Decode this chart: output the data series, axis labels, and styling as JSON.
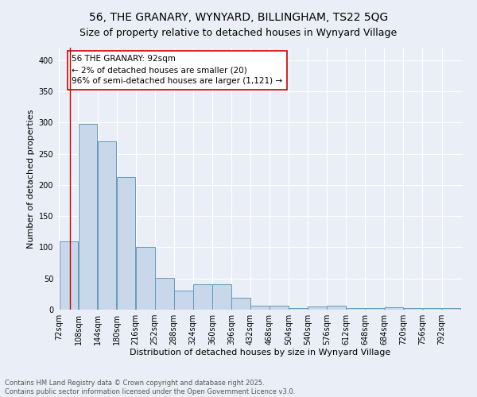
{
  "title1": "56, THE GRANARY, WYNYARD, BILLINGHAM, TS22 5QG",
  "title2": "Size of property relative to detached houses in Wynyard Village",
  "xlabel": "Distribution of detached houses by size in Wynyard Village",
  "ylabel": "Number of detached properties",
  "bar_color": "#c8d8ea",
  "bar_edge_color": "#6699bb",
  "bins": [
    72,
    108,
    144,
    180,
    216,
    252,
    288,
    324,
    360,
    396,
    432,
    468,
    504,
    540,
    576,
    612,
    648,
    684,
    720,
    756,
    792
  ],
  "values": [
    110,
    298,
    270,
    213,
    101,
    51,
    31,
    41,
    41,
    19,
    7,
    6,
    2,
    5,
    7,
    3,
    2,
    4,
    2,
    2,
    3
  ],
  "tick_labels": [
    "72sqm",
    "108sqm",
    "144sqm",
    "180sqm",
    "216sqm",
    "252sqm",
    "288sqm",
    "324sqm",
    "360sqm",
    "396sqm",
    "432sqm",
    "468sqm",
    "504sqm",
    "540sqm",
    "576sqm",
    "612sqm",
    "648sqm",
    "684sqm",
    "720sqm",
    "756sqm",
    "792sqm"
  ],
  "vline_x": 92,
  "vline_color": "#cc0000",
  "annotation_text": "56 THE GRANARY: 92sqm\n← 2% of detached houses are smaller (20)\n96% of semi-detached houses are larger (1,121) →",
  "annotation_box_color": "#ffffff",
  "annotation_box_edge": "#cc0000",
  "ylim": [
    0,
    420
  ],
  "yticks": [
    0,
    50,
    100,
    150,
    200,
    250,
    300,
    350,
    400
  ],
  "background_color": "#eaeff7",
  "plot_bg_color": "#eaeff7",
  "footer": "Contains HM Land Registry data © Crown copyright and database right 2025.\nContains public sector information licensed under the Open Government Licence v3.0.",
  "grid_color": "#ffffff",
  "title_fontsize": 10,
  "subtitle_fontsize": 9,
  "axis_label_fontsize": 8,
  "tick_fontsize": 7,
  "annotation_fontsize": 7.5,
  "footer_fontsize": 6
}
